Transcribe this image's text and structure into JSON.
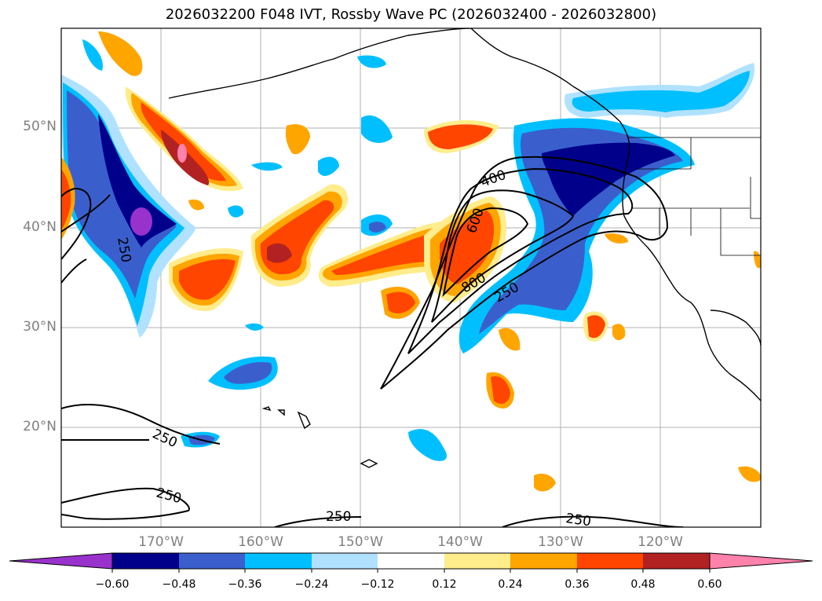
{
  "title": "2026032200 F048 IVT, Rossby Wave PC (2026032400 - 2026032800)",
  "lat_labels": [
    "50°N",
    "40°N",
    "30°N",
    "20°N"
  ],
  "lon_labels": [
    "170°W",
    "160°W",
    "150°W",
    "140°W",
    "130°W",
    "120°W"
  ],
  "contour_labels": [
    "250",
    "400",
    "600",
    "800",
    "250",
    "250",
    "250",
    "250",
    "250"
  ],
  "colorbar": {
    "ticks": [
      "−0.60",
      "−0.48",
      "−0.36",
      "−0.24",
      "−0.12",
      "0.12",
      "0.24",
      "0.36",
      "0.48",
      "0.60"
    ],
    "colors": [
      "#9932cc",
      "#00008b",
      "#3a5fcd",
      "#00bfff",
      "#b0e2ff",
      "#ffffff",
      "#ffec8b",
      "#ffa500",
      "#ff4500",
      "#b22222",
      "#ff82ab"
    ]
  }
}
